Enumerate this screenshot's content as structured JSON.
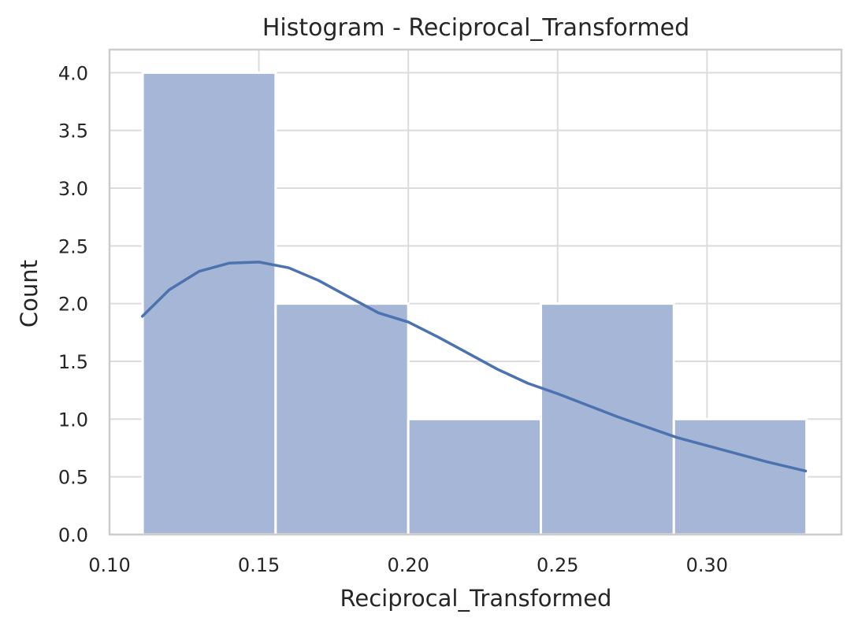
{
  "chart_data": {
    "type": "bar",
    "title": "Histogram - Reciprocal_Transformed",
    "xlabel": "Reciprocal_Transformed",
    "ylabel": "Count",
    "bins": [
      {
        "start": 0.1111,
        "end": 0.1556,
        "count": 4
      },
      {
        "start": 0.1556,
        "end": 0.2,
        "count": 2
      },
      {
        "start": 0.2,
        "end": 0.2444,
        "count": 1
      },
      {
        "start": 0.2444,
        "end": 0.2889,
        "count": 2
      },
      {
        "start": 0.2889,
        "end": 0.3333,
        "count": 1
      }
    ],
    "kde": {
      "x": [
        0.111,
        0.12,
        0.13,
        0.14,
        0.15,
        0.16,
        0.17,
        0.18,
        0.19,
        0.2,
        0.21,
        0.22,
        0.23,
        0.24,
        0.25,
        0.26,
        0.27,
        0.28,
        0.29,
        0.3,
        0.31,
        0.32,
        0.333
      ],
      "y": [
        1.89,
        2.12,
        2.28,
        2.35,
        2.36,
        2.31,
        2.2,
        2.06,
        1.92,
        1.84,
        1.71,
        1.57,
        1.43,
        1.31,
        1.22,
        1.12,
        1.02,
        0.93,
        0.84,
        0.77,
        0.7,
        0.63,
        0.55
      ]
    },
    "xlim": [
      0.1,
      0.345
    ],
    "ylim": [
      0,
      4.2
    ],
    "xticks": [
      "0.10",
      "0.15",
      "0.20",
      "0.25",
      "0.30"
    ],
    "yticks": [
      "0.0",
      "0.5",
      "1.0",
      "1.5",
      "2.0",
      "2.5",
      "3.0",
      "3.5",
      "4.0"
    ],
    "grid": true,
    "colors": {
      "bar_fill": "#a5b6d6",
      "bar_edge": "#ffffff",
      "kde_line": "#4c72b0",
      "grid": "#dcdcdc",
      "spine": "#cccccc"
    }
  }
}
